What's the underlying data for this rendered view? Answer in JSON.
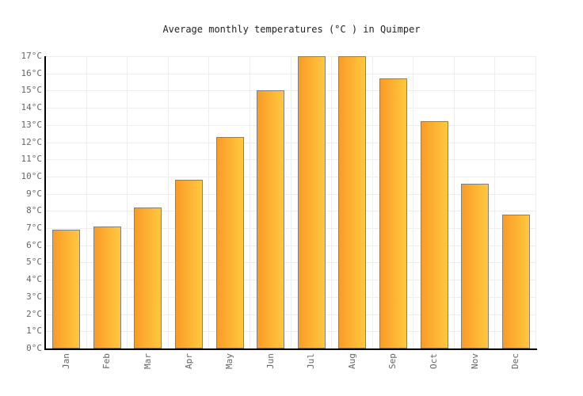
{
  "chart_data": {
    "type": "bar",
    "title": "Average monthly temperatures (°C ) in Quimper",
    "categories": [
      "Jan",
      "Feb",
      "Mar",
      "Apr",
      "May",
      "Jun",
      "Jul",
      "Aug",
      "Sep",
      "Oct",
      "Nov",
      "Dec"
    ],
    "values": [
      6.9,
      7.1,
      8.2,
      9.8,
      12.3,
      15.0,
      17.0,
      17.0,
      15.7,
      13.2,
      9.6,
      7.8
    ],
    "xlabel": "",
    "ylabel": "",
    "ylim": [
      0,
      17
    ],
    "ytick_step": 1,
    "ytick_suffix": "°C",
    "grid": true,
    "legend": false,
    "colors": {
      "bar_gradient_left": "#fa9b28",
      "bar_gradient_right": "#ffc83e",
      "bar_border": "#808080",
      "gridline": "#eeeeee",
      "axis": "#000000",
      "tick_label": "#666666",
      "title_text": "#222222"
    }
  }
}
